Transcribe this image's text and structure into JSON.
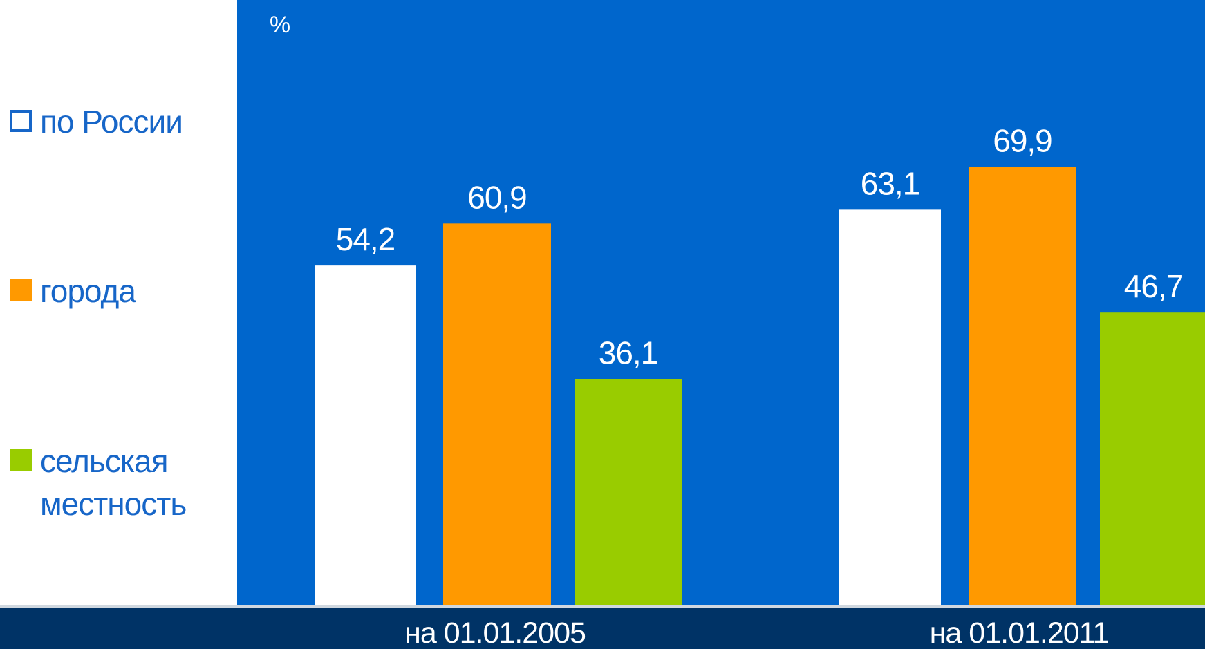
{
  "chart_data": {
    "type": "bar",
    "unit_label": "%",
    "categories": [
      "на 01.01.2005",
      "на 01.01.2011"
    ],
    "series": [
      {
        "name": "по России",
        "values": [
          "54,2",
          "63,1"
        ],
        "color": "#ffffff",
        "legend_style": "outline"
      },
      {
        "name": "города",
        "values": [
          "60,9",
          "69,9"
        ],
        "color": "#ff9900",
        "legend_style": "filled"
      },
      {
        "name": "сельская\nместность",
        "values": [
          "36,1",
          "46,7"
        ],
        "color": "#99cc00",
        "legend_style": "filled"
      }
    ],
    "ylim": [
      0,
      80
    ],
    "grid": false,
    "legend_position": "left",
    "colors": {
      "plot_background": "#0066cc",
      "footer_background": "#003366",
      "legend_text": "#1766c8",
      "value_labels": "#ffffff"
    }
  }
}
